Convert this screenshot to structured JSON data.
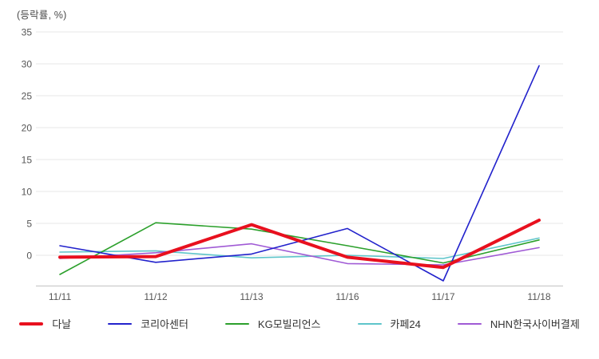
{
  "header": {
    "y_axis_unit_label": "(등락률, %)"
  },
  "chart_data": {
    "type": "line",
    "title": "",
    "xlabel": "",
    "ylabel": "(등락률, %)",
    "categories": [
      "11/11",
      "11/12",
      "11/13",
      "11/16",
      "11/17",
      "11/18"
    ],
    "yticks": [
      0,
      5,
      10,
      15,
      20,
      25,
      30,
      35
    ],
    "ylim": [
      -4.9,
      35
    ],
    "grid": true,
    "legend_position": "bottom",
    "series": [
      {
        "name": "다날",
        "color": "#e8101e",
        "thick": true,
        "values": [
          -0.3,
          -0.2,
          4.8,
          -0.3,
          -1.9,
          5.5
        ]
      },
      {
        "name": "코리아센터",
        "color": "#2222cc",
        "thick": false,
        "values": [
          1.5,
          -1.1,
          0.2,
          4.2,
          -4.0,
          29.7
        ]
      },
      {
        "name": "KG모빌리언스",
        "color": "#2ca02c",
        "thick": false,
        "values": [
          -3.0,
          5.1,
          4.1,
          1.5,
          -1.2,
          2.4
        ]
      },
      {
        "name": "카페24",
        "color": "#5ec5ca",
        "thick": false,
        "values": [
          0.5,
          0.7,
          -0.4,
          0.0,
          -0.5,
          2.7
        ]
      },
      {
        "name": "NHN한국사이버결제",
        "color": "#a05ad5",
        "thick": false,
        "values": [
          -0.5,
          0.4,
          1.8,
          -1.3,
          -1.5,
          1.2
        ]
      }
    ],
    "colors": {
      "gridline": "#e7e7e7",
      "axis_line": "#c3c3c3",
      "tick_text": "#555555"
    }
  }
}
